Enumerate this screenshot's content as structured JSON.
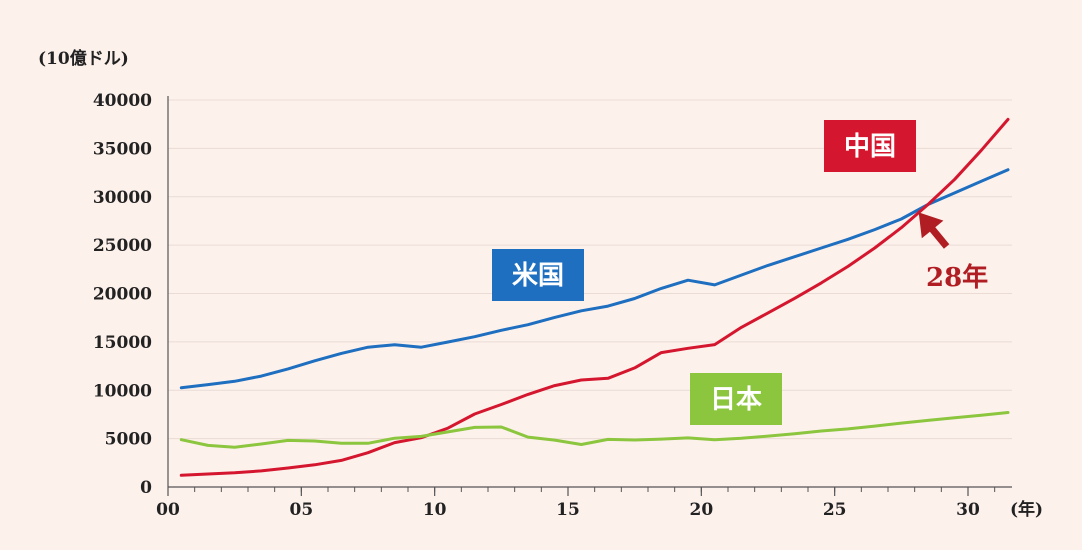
{
  "chart_data": {
    "type": "line",
    "title": "",
    "xlabel": "(年)",
    "ylabel": "(10億ドル)",
    "xlim": [
      0,
      31
    ],
    "ylim": [
      0,
      40000
    ],
    "grid": "horizontal",
    "x_ticks": [
      {
        "value": 0,
        "label": "00"
      },
      {
        "value": 5,
        "label": "05"
      },
      {
        "value": 10,
        "label": "10"
      },
      {
        "value": 15,
        "label": "15"
      },
      {
        "value": 20,
        "label": "20"
      },
      {
        "value": 25,
        "label": "25"
      },
      {
        "value": 30,
        "label": "30"
      }
    ],
    "y_ticks": [
      {
        "value": 0,
        "label": "0"
      },
      {
        "value": 5000,
        "label": "5000"
      },
      {
        "value": 10000,
        "label": "10000"
      },
      {
        "value": 15000,
        "label": "15000"
      },
      {
        "value": 20000,
        "label": "20000"
      },
      {
        "value": 25000,
        "label": "25000"
      },
      {
        "value": 30000,
        "label": "30000"
      },
      {
        "value": 35000,
        "label": "35000"
      },
      {
        "value": 40000,
        "label": "40000"
      }
    ],
    "series": [
      {
        "name": "米国",
        "color": "#1e6fc0",
        "label_bg": "#1e6fc0",
        "points": [
          [
            0.5,
            10250
          ],
          [
            1.5,
            10580
          ],
          [
            2.5,
            10930
          ],
          [
            3.5,
            11460
          ],
          [
            4.5,
            12210
          ],
          [
            5.5,
            13040
          ],
          [
            6.5,
            13810
          ],
          [
            7.5,
            14450
          ],
          [
            8.5,
            14710
          ],
          [
            9.5,
            14450
          ],
          [
            10.5,
            14990
          ],
          [
            11.5,
            15540
          ],
          [
            12.5,
            16200
          ],
          [
            13.5,
            16780
          ],
          [
            14.5,
            17530
          ],
          [
            15.5,
            18210
          ],
          [
            16.5,
            18700
          ],
          [
            17.5,
            19480
          ],
          [
            18.5,
            20530
          ],
          [
            19.5,
            21370
          ],
          [
            20.5,
            20890
          ],
          [
            21.5,
            21900
          ],
          [
            22.5,
            22900
          ],
          [
            23.5,
            23800
          ],
          [
            24.5,
            24700
          ],
          [
            25.5,
            25600
          ],
          [
            26.5,
            26600
          ],
          [
            27.5,
            27700
          ],
          [
            28.5,
            29200
          ],
          [
            29.5,
            30400
          ],
          [
            30.5,
            31600
          ],
          [
            31.5,
            32800
          ]
        ]
      },
      {
        "name": "中国",
        "color": "#d4172e",
        "label_bg": "#d4172e",
        "points": [
          [
            0.5,
            1210
          ],
          [
            1.5,
            1340
          ],
          [
            2.5,
            1470
          ],
          [
            3.5,
            1660
          ],
          [
            4.5,
            1960
          ],
          [
            5.5,
            2290
          ],
          [
            6.5,
            2750
          ],
          [
            7.5,
            3550
          ],
          [
            8.5,
            4590
          ],
          [
            9.5,
            5100
          ],
          [
            10.5,
            6090
          ],
          [
            11.5,
            7550
          ],
          [
            12.5,
            8530
          ],
          [
            13.5,
            9570
          ],
          [
            14.5,
            10480
          ],
          [
            15.5,
            11060
          ],
          [
            16.5,
            11230
          ],
          [
            17.5,
            12310
          ],
          [
            18.5,
            13890
          ],
          [
            19.5,
            14340
          ],
          [
            20.5,
            14720
          ],
          [
            21.5,
            16500
          ],
          [
            22.5,
            18000
          ],
          [
            23.5,
            19500
          ],
          [
            24.5,
            21100
          ],
          [
            25.5,
            22800
          ],
          [
            26.5,
            24700
          ],
          [
            27.5,
            26800
          ],
          [
            28.5,
            29200
          ],
          [
            29.5,
            31800
          ],
          [
            30.5,
            34800
          ],
          [
            31.5,
            38000
          ]
        ]
      },
      {
        "name": "日本",
        "color": "#8cc63f",
        "label_bg": "#8cc63f",
        "points": [
          [
            0.5,
            4890
          ],
          [
            1.5,
            4300
          ],
          [
            2.5,
            4110
          ],
          [
            3.5,
            4440
          ],
          [
            4.5,
            4820
          ],
          [
            5.5,
            4750
          ],
          [
            6.5,
            4530
          ],
          [
            7.5,
            4520
          ],
          [
            8.5,
            5040
          ],
          [
            9.5,
            5230
          ],
          [
            10.5,
            5700
          ],
          [
            11.5,
            6160
          ],
          [
            12.5,
            6200
          ],
          [
            13.5,
            5160
          ],
          [
            14.5,
            4850
          ],
          [
            15.5,
            4390
          ],
          [
            16.5,
            4920
          ],
          [
            17.5,
            4860
          ],
          [
            18.5,
            4950
          ],
          [
            19.5,
            5080
          ],
          [
            20.5,
            4890
          ],
          [
            21.5,
            5030
          ],
          [
            22.5,
            5260
          ],
          [
            23.5,
            5510
          ],
          [
            24.5,
            5790
          ],
          [
            25.5,
            6010
          ],
          [
            26.5,
            6290
          ],
          [
            27.5,
            6600
          ],
          [
            28.5,
            6880
          ],
          [
            29.5,
            7150
          ],
          [
            30.5,
            7420
          ],
          [
            31.5,
            7700
          ]
        ]
      }
    ],
    "annotations": [
      {
        "text": "28年",
        "color": "#b01e23",
        "points_to": [
          28,
          29000
        ]
      }
    ]
  }
}
